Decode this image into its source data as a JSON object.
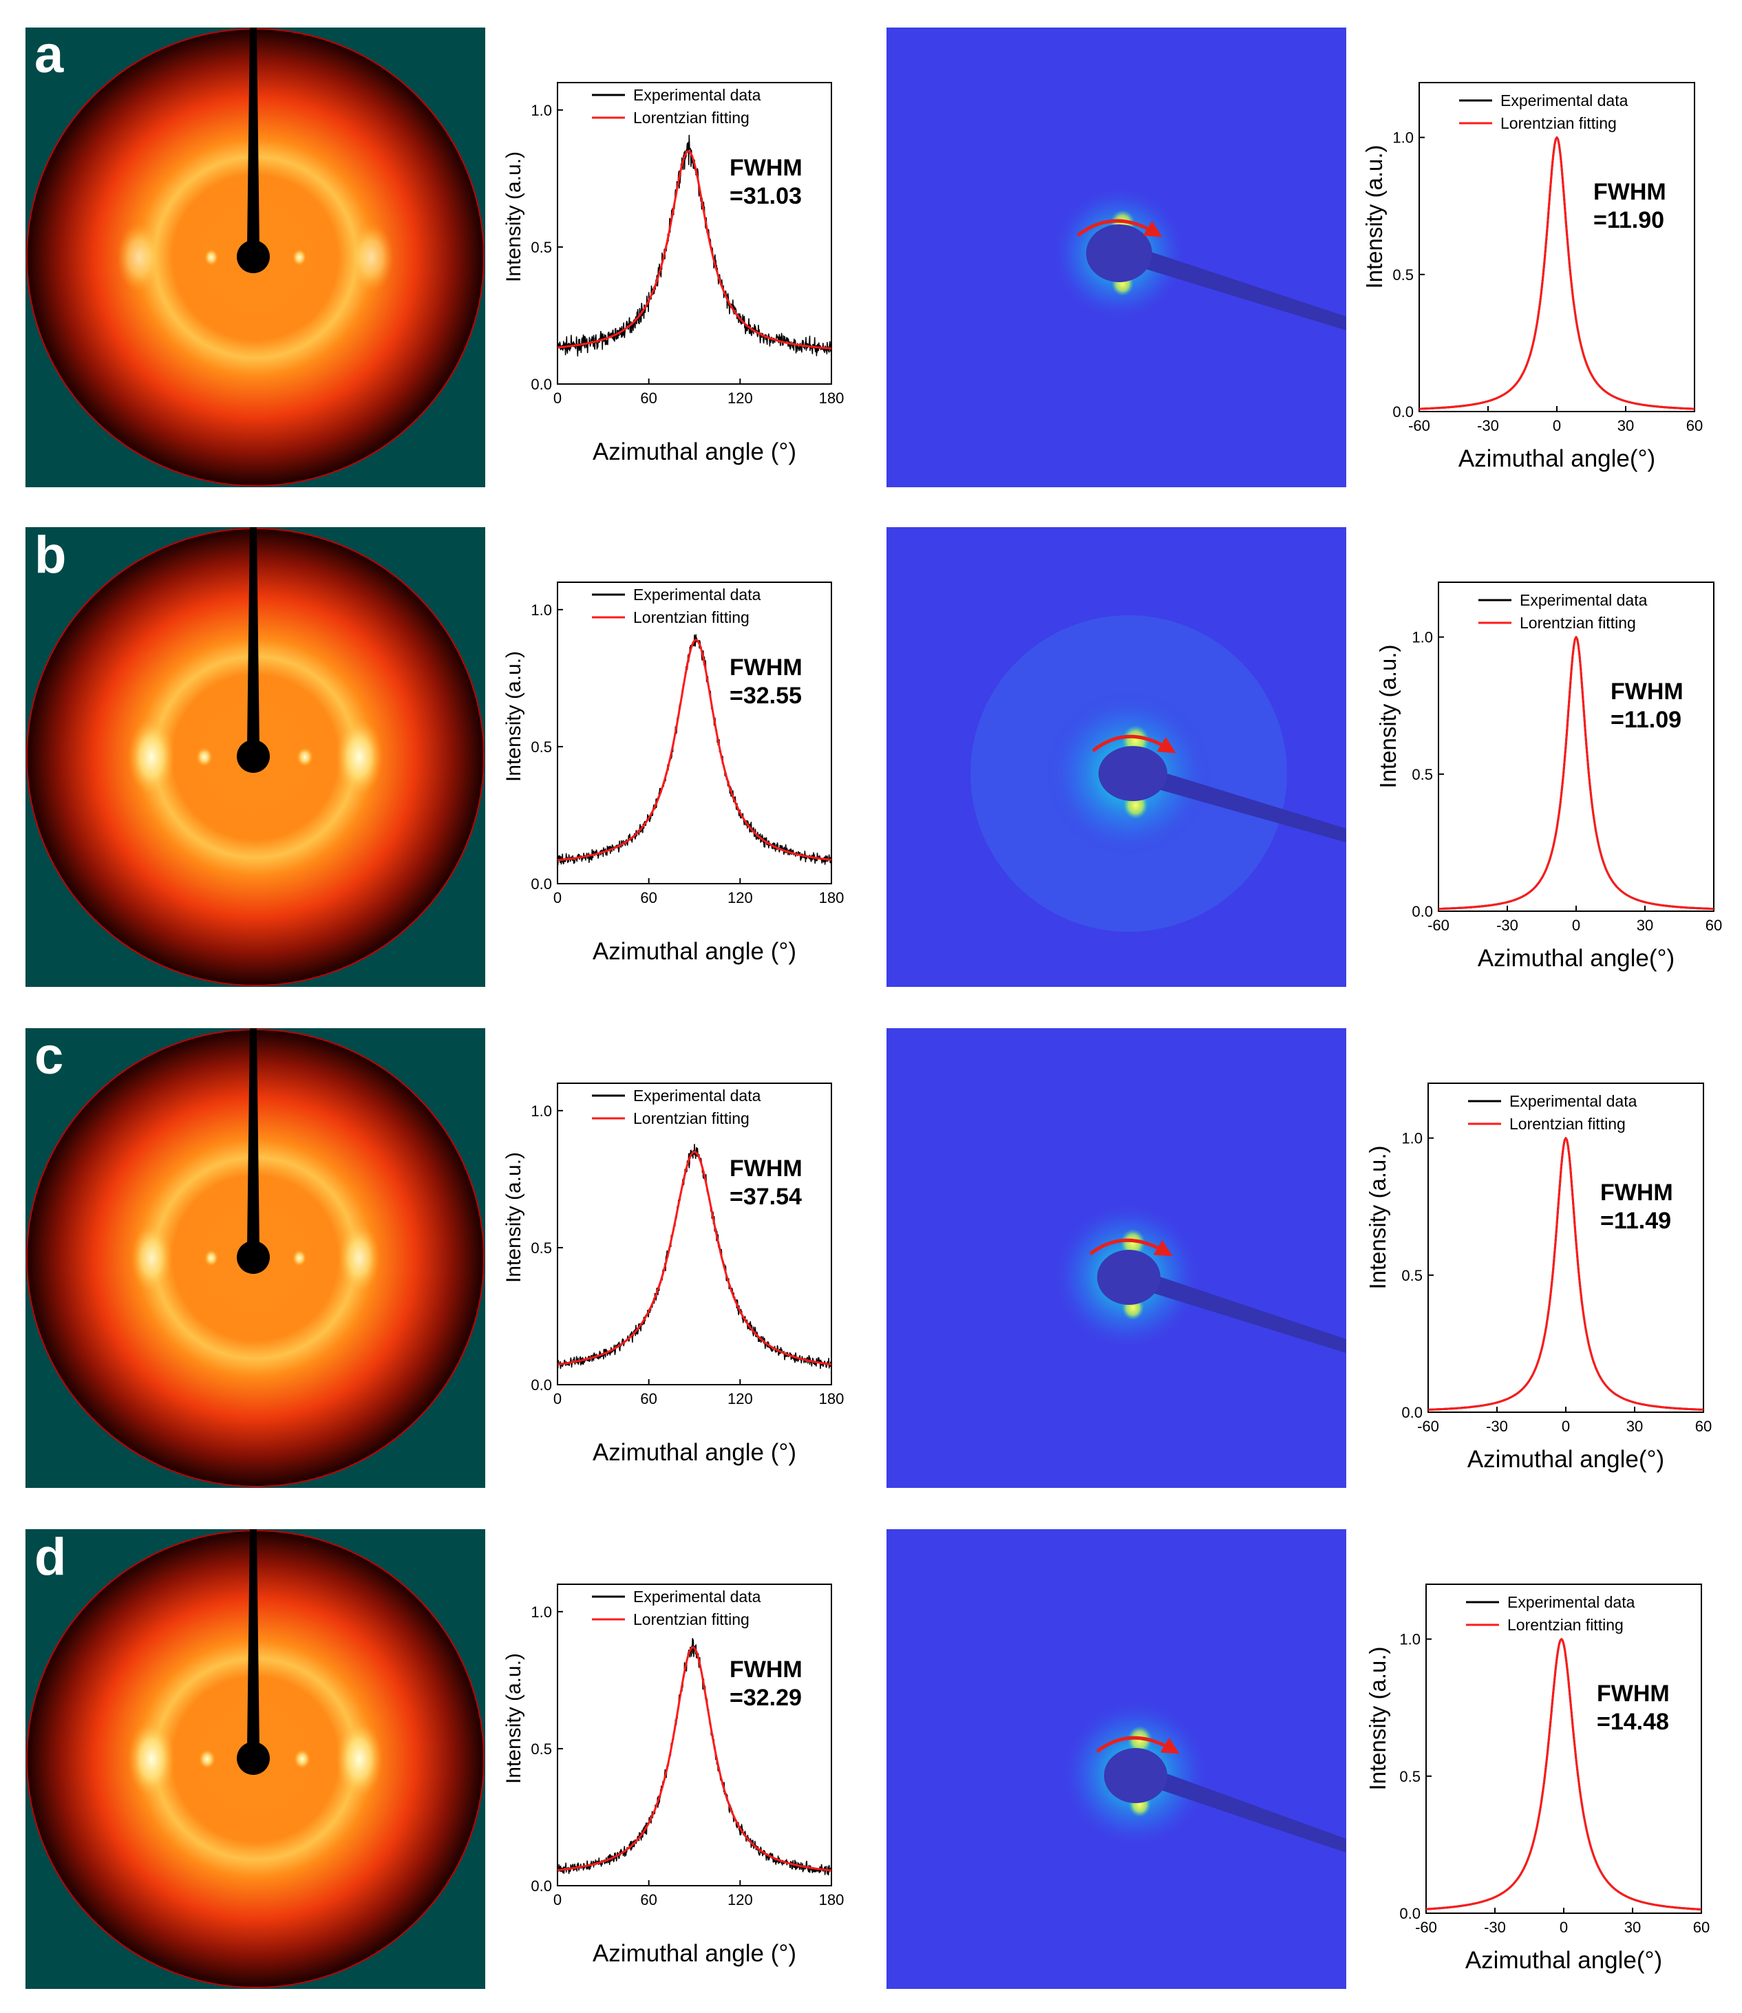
{
  "figure": {
    "legend": {
      "experimental": "Experimental data",
      "fit": "Lorentzian fitting"
    },
    "colors": {
      "background": "#ffffff",
      "panel_teal": "#004a4a",
      "experimental": "#000000",
      "fit": "#ff1a1a",
      "saxs_bg": "#3d3fe8",
      "arrow": "#e8201c"
    },
    "panels": [
      {
        "label": "a",
        "waxs_fwhm": "FWHM\n=31.03",
        "saxs_fwhm": "FWHM\n=11.90"
      },
      {
        "label": "b",
        "waxs_fwhm": "FWHM\n=32.55",
        "saxs_fwhm": "FWHM\n=11.09"
      },
      {
        "label": "c",
        "waxs_fwhm": "FWHM\n=37.54",
        "saxs_fwhm": "FWHM\n=11.49"
      },
      {
        "label": "d",
        "waxs_fwhm": "FWHM\n=32.29",
        "saxs_fwhm": "FWHM\n=14.48"
      }
    ]
  },
  "chart_data": [
    {
      "panel": "a-waxs",
      "type": "line",
      "xlabel": "Azimuthal angle (°)",
      "ylabel": "Intensity (a.u.)",
      "xlim": [
        0,
        180
      ],
      "ylim": [
        0,
        1.1
      ],
      "xticks": [
        0,
        60,
        120,
        180
      ],
      "yticks": [
        0.0,
        0.5,
        1.0
      ],
      "series": [
        {
          "name": "Experimental data",
          "model": "lorentzian",
          "x0": 86,
          "amplitude": 0.74,
          "baseline": 0.11,
          "fwhm": 31.03,
          "noise": 0.045
        },
        {
          "name": "Lorentzian fitting",
          "model": "lorentzian",
          "x0": 86,
          "amplitude": 0.74,
          "baseline": 0.11,
          "fwhm": 31.03
        }
      ],
      "annotation": "FWHM =31.03"
    },
    {
      "panel": "a-saxs",
      "type": "line",
      "xlabel": "Azimuthal angle(°)",
      "ylabel": "Intensity (a.u.)",
      "xlim": [
        -60,
        60
      ],
      "ylim": [
        0,
        1.2
      ],
      "xticks": [
        -60,
        -30,
        0,
        30,
        60
      ],
      "yticks": [
        0.0,
        0.5,
        1.0
      ],
      "series": [
        {
          "name": "Experimental data",
          "model": "lorentzian",
          "x0": 0,
          "amplitude": 1.0,
          "baseline": 0.0,
          "fwhm": 11.9,
          "noise": 0
        },
        {
          "name": "Lorentzian fitting",
          "model": "lorentzian",
          "x0": 0,
          "amplitude": 1.0,
          "baseline": 0.0,
          "fwhm": 11.9
        }
      ],
      "annotation": "FWHM =11.90"
    },
    {
      "panel": "b-waxs",
      "type": "line",
      "xlabel": "Azimuthal angle (°)",
      "ylabel": "Intensity (a.u.)",
      "xlim": [
        0,
        180
      ],
      "ylim": [
        0,
        1.1
      ],
      "xticks": [
        0,
        60,
        120,
        180
      ],
      "yticks": [
        0.0,
        0.5,
        1.0
      ],
      "series": [
        {
          "name": "Experimental data",
          "model": "lorentzian",
          "x0": 91,
          "amplitude": 0.83,
          "baseline": 0.06,
          "fwhm": 32.55,
          "noise": 0.03
        },
        {
          "name": "Lorentzian fitting",
          "model": "lorentzian",
          "x0": 91,
          "amplitude": 0.83,
          "baseline": 0.06,
          "fwhm": 32.55
        }
      ],
      "annotation": "FWHM =32.55"
    },
    {
      "panel": "b-saxs",
      "type": "line",
      "xlabel": "Azimuthal angle(°)",
      "ylabel": "Intensity (a.u.)",
      "xlim": [
        -60,
        60
      ],
      "ylim": [
        0,
        1.2
      ],
      "xticks": [
        -60,
        -30,
        0,
        30,
        60
      ],
      "yticks": [
        0.0,
        0.5,
        1.0
      ],
      "series": [
        {
          "name": "Experimental data",
          "model": "lorentzian",
          "x0": 0,
          "amplitude": 1.0,
          "baseline": 0.0,
          "fwhm": 11.09,
          "noise": 0
        },
        {
          "name": "Lorentzian fitting",
          "model": "lorentzian",
          "x0": 0,
          "amplitude": 1.0,
          "baseline": 0.0,
          "fwhm": 11.09
        }
      ],
      "annotation": "FWHM =11.09"
    },
    {
      "panel": "c-waxs",
      "type": "line",
      "xlabel": "Azimuthal angle (°)",
      "ylabel": "Intensity (a.u.)",
      "xlim": [
        0,
        180
      ],
      "ylim": [
        0,
        1.1
      ],
      "xticks": [
        0,
        60,
        120,
        180
      ],
      "yticks": [
        0.0,
        0.5,
        1.0
      ],
      "series": [
        {
          "name": "Experimental data",
          "model": "lorentzian",
          "x0": 90,
          "amplitude": 0.81,
          "baseline": 0.04,
          "fwhm": 37.54,
          "noise": 0.03
        },
        {
          "name": "Lorentzian fitting",
          "model": "lorentzian",
          "x0": 90,
          "amplitude": 0.81,
          "baseline": 0.04,
          "fwhm": 37.54
        }
      ],
      "annotation": "FWHM =37.54"
    },
    {
      "panel": "c-saxs",
      "type": "line",
      "xlabel": "Azimuthal angle(°)",
      "ylabel": "Intensity (a.u.)",
      "xlim": [
        -60,
        60
      ],
      "ylim": [
        0,
        1.2
      ],
      "xticks": [
        -60,
        -30,
        0,
        30,
        60
      ],
      "yticks": [
        0.0,
        0.5,
        1.0
      ],
      "series": [
        {
          "name": "Experimental data",
          "model": "lorentzian",
          "x0": 0,
          "amplitude": 1.0,
          "baseline": 0.0,
          "fwhm": 11.49,
          "noise": 0
        },
        {
          "name": "Lorentzian fitting",
          "model": "lorentzian",
          "x0": 0,
          "amplitude": 1.0,
          "baseline": 0.0,
          "fwhm": 11.49
        }
      ],
      "annotation": "FWHM =11.49"
    },
    {
      "panel": "d-waxs",
      "type": "line",
      "xlabel": "Azimuthal angle (°)",
      "ylabel": "Intensity (a.u.)",
      "xlim": [
        0,
        180
      ],
      "ylim": [
        0,
        1.1
      ],
      "xticks": [
        0,
        60,
        120,
        180
      ],
      "yticks": [
        0.0,
        0.5,
        1.0
      ],
      "series": [
        {
          "name": "Experimental data",
          "model": "lorentzian",
          "x0": 89,
          "amplitude": 0.84,
          "baseline": 0.03,
          "fwhm": 32.29,
          "noise": 0.03
        },
        {
          "name": "Lorentzian fitting",
          "model": "lorentzian",
          "x0": 89,
          "amplitude": 0.84,
          "baseline": 0.03,
          "fwhm": 32.29
        }
      ],
      "annotation": "FWHM =32.29"
    },
    {
      "panel": "d-saxs",
      "type": "line",
      "xlabel": "Azimuthal angle(°)",
      "ylabel": "Intensity (a.u.)",
      "xlim": [
        -60,
        60
      ],
      "ylim": [
        0,
        1.2
      ],
      "xticks": [
        -60,
        -30,
        0,
        30,
        60
      ],
      "yticks": [
        0.0,
        0.5,
        1.0
      ],
      "series": [
        {
          "name": "Experimental data",
          "model": "lorentzian",
          "x0": -1,
          "amplitude": 1.0,
          "baseline": 0.0,
          "fwhm": 14.48,
          "noise": 0
        },
        {
          "name": "Lorentzian fitting",
          "model": "lorentzian",
          "x0": -1,
          "amplitude": 1.0,
          "baseline": 0.0,
          "fwhm": 14.48
        }
      ],
      "annotation": "FWHM =14.48"
    }
  ]
}
